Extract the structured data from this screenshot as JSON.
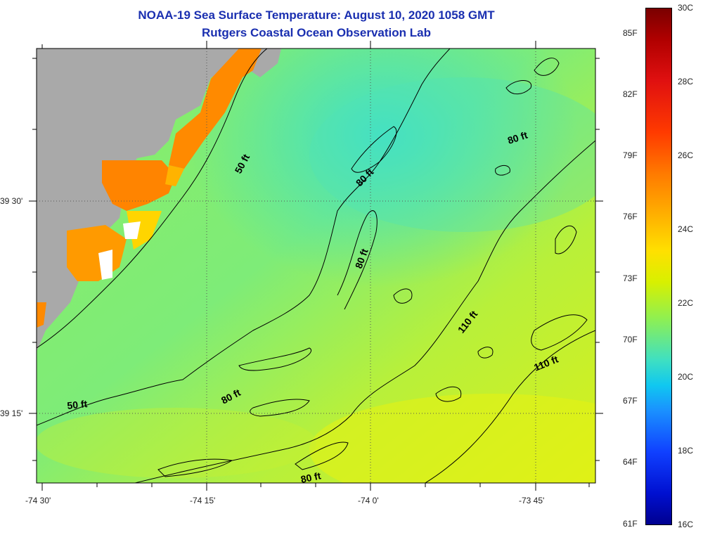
{
  "title": {
    "line1": "NOAA-19 Sea Surface Temperature:  August 10, 2020 1058 GMT",
    "line2": "Rutgers Coastal Ocean Observation Lab"
  },
  "axes": {
    "x_ticks": [
      "-74 30'",
      "-74 15'",
      "-74 0'",
      "-73 45'"
    ],
    "y_ticks": [
      "39 30'",
      "39 15'"
    ]
  },
  "contours": {
    "labels": [
      "50 ft",
      "50 ft",
      "80 ft",
      "80 ft",
      "80 ft",
      "80 ft",
      "80 ft",
      "110 ft",
      "110 ft"
    ]
  },
  "colorbar": {
    "fahrenheit": [
      "85F",
      "82F",
      "79F",
      "76F",
      "73F",
      "70F",
      "67F",
      "64F",
      "61F"
    ],
    "celsius": [
      "30C",
      "28C",
      "26C",
      "24C",
      "22C",
      "20C",
      "18C",
      "16C"
    ]
  },
  "colors": {
    "land": "#a9a9a9",
    "title": "#1a2fb0",
    "contour": "#000000",
    "water_mid": "#84ee6e",
    "water_cool": "#4fe3b6",
    "water_warm": "#d4f01f",
    "nearshore_hot": "#ff8800"
  }
}
